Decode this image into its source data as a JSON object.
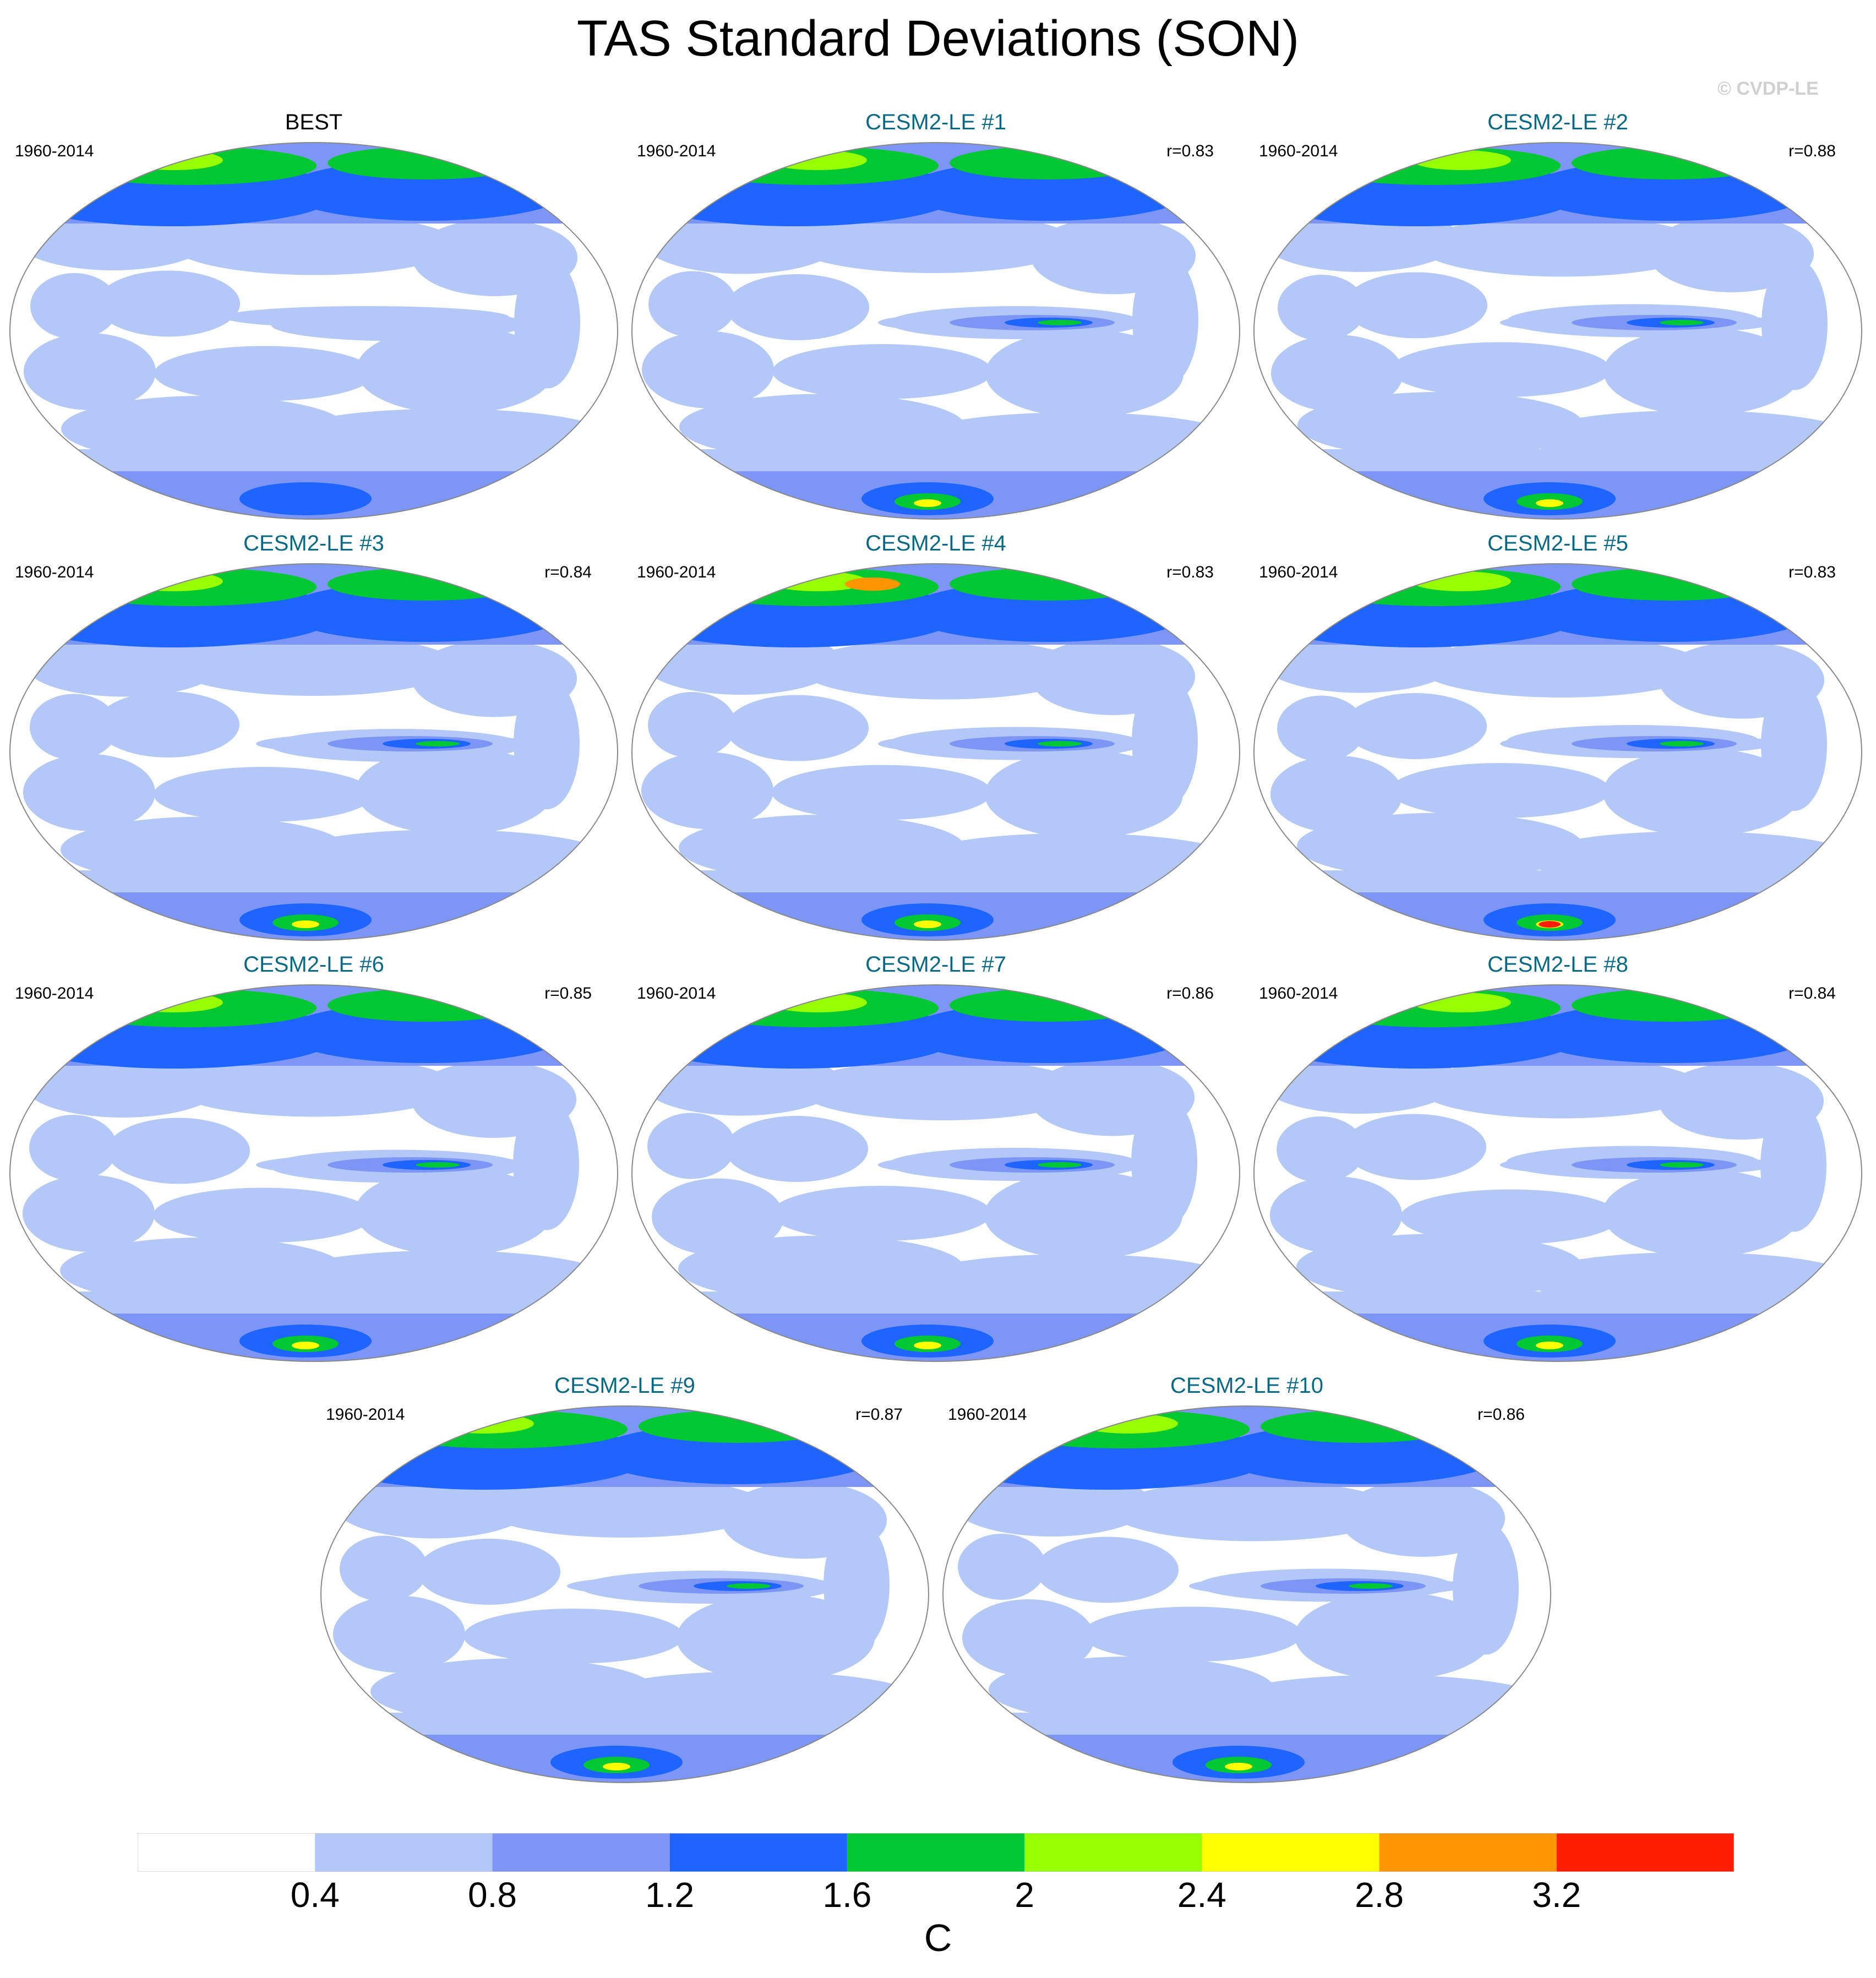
{
  "title": "TAS Standard Deviations (SON)",
  "copyright": "© CVDP-LE",
  "units": "C",
  "colorbar": {
    "colors": [
      "#ffffff",
      "#b4c8f8",
      "#7d96f5",
      "#1e64ff",
      "#00c832",
      "#96ff00",
      "#ffff00",
      "#ff9600",
      "#ff1e00"
    ],
    "labels": [
      "0.4",
      "0.8",
      "1.2",
      "1.6",
      "2",
      "2.4",
      "2.8",
      "3.2"
    ]
  },
  "panels": [
    {
      "title": "BEST",
      "period": "1960-2014",
      "corr": "",
      "observed": true
    },
    {
      "title": "CESM2-LE #1",
      "period": "1960-2014",
      "corr": "r=0.83"
    },
    {
      "title": "CESM2-LE #2",
      "period": "1960-2014",
      "corr": "r=0.88"
    },
    {
      "title": "CESM2-LE #3",
      "period": "1960-2014",
      "corr": "r=0.84"
    },
    {
      "title": "CESM2-LE #4",
      "period": "1960-2014",
      "corr": "r=0.83"
    },
    {
      "title": "CESM2-LE #5",
      "period": "1960-2014",
      "corr": "r=0.83"
    },
    {
      "title": "CESM2-LE #6",
      "period": "1960-2014",
      "corr": "r=0.85"
    },
    {
      "title": "CESM2-LE #7",
      "period": "1960-2014",
      "corr": "r=0.86"
    },
    {
      "title": "CESM2-LE #8",
      "period": "1960-2014",
      "corr": "r=0.84"
    },
    {
      "title": "CESM2-LE #9",
      "period": "1960-2014",
      "corr": "r=0.87"
    },
    {
      "title": "CESM2-LE #10",
      "period": "1960-2014",
      "corr": "r=0.86"
    }
  ]
}
